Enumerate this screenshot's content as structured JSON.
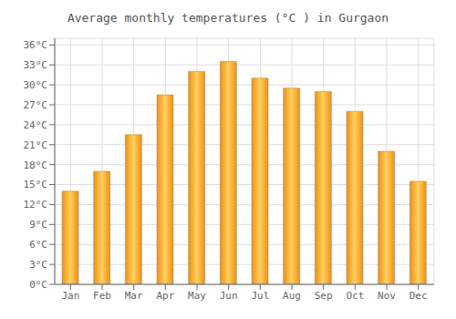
{
  "chart_data": {
    "type": "bar",
    "title": "Average monthly temperatures (°C ) in Gurgaon",
    "categories": [
      "Jan",
      "Feb",
      "Mar",
      "Apr",
      "May",
      "Jun",
      "Jul",
      "Aug",
      "Sep",
      "Oct",
      "Nov",
      "Dec"
    ],
    "values": [
      14,
      17,
      22.5,
      28.5,
      32,
      33.5,
      31,
      29.5,
      29,
      26,
      20,
      15.5
    ],
    "color": "#F09010",
    "ylim": [
      0,
      37
    ],
    "yticks": [
      {
        "value": 0,
        "label": "0°C"
      },
      {
        "value": 3,
        "label": "3°C"
      },
      {
        "value": 6,
        "label": "6°C"
      },
      {
        "value": 9,
        "label": "9°C"
      },
      {
        "value": 12,
        "label": "12°C"
      },
      {
        "value": 15,
        "label": "15°C"
      },
      {
        "value": 18,
        "label": "18°C"
      },
      {
        "value": 21,
        "label": "21°C"
      },
      {
        "value": 24,
        "label": "24°C"
      },
      {
        "value": 27,
        "label": "27°C"
      },
      {
        "value": 30,
        "label": "30°C"
      },
      {
        "value": 33,
        "label": "33°C"
      },
      {
        "value": 36,
        "label": "36°C"
      }
    ],
    "grid": true
  }
}
